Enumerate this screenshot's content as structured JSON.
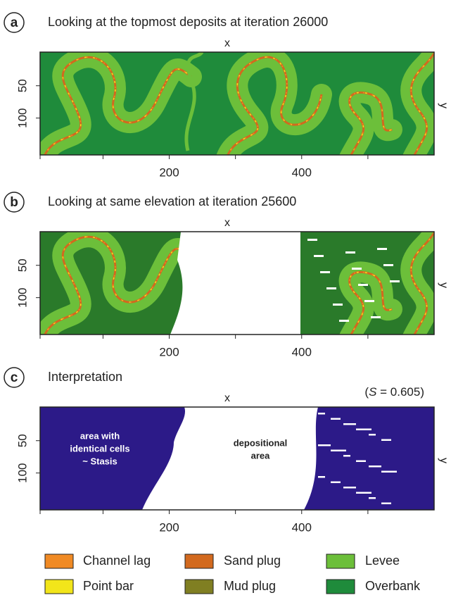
{
  "panels": [
    {
      "letter": "a",
      "title": "Looking at the topmost deposits at iteration 26000",
      "x_label": "x",
      "y_label": "y",
      "xlim": [
        5,
        600
      ],
      "ylim": [
        -2,
        157
      ],
      "xticks": [
        200,
        400
      ],
      "yticks": [
        50,
        100
      ]
    },
    {
      "letter": "b",
      "title": "Looking at same elevation at iteration 25600",
      "x_label": "x",
      "y_label": "y",
      "xlim": [
        5,
        600
      ],
      "ylim": [
        -2,
        157
      ],
      "xticks": [
        200,
        400
      ],
      "yticks": [
        50,
        100
      ]
    },
    {
      "letter": "c",
      "title": "Interpretation",
      "x_label": "x",
      "y_label": "y",
      "xlim": [
        5,
        600
      ],
      "ylim": [
        -2,
        157
      ],
      "xticks": [
        200,
        400
      ],
      "yticks": [
        50,
        100
      ],
      "annotation": {
        "prefix": "(",
        "symbol": "S",
        "suffix": " = 0.605)"
      },
      "region_labels": [
        [
          "area with",
          "identical cells",
          "~ Stasis"
        ],
        [
          "depositional",
          "area"
        ]
      ]
    }
  ],
  "legend": {
    "items": [
      {
        "label": "Channel lag",
        "color": "#f08a24"
      },
      {
        "label": "Point bar",
        "color": "#f2e51a"
      },
      {
        "label": "Sand plug",
        "color": "#d2691e"
      },
      {
        "label": "Mud plug",
        "color": "#807f22"
      },
      {
        "label": "Levee",
        "color": "#6cbf3a"
      },
      {
        "label": "Overbank",
        "color": "#1f8b3b"
      }
    ]
  }
}
